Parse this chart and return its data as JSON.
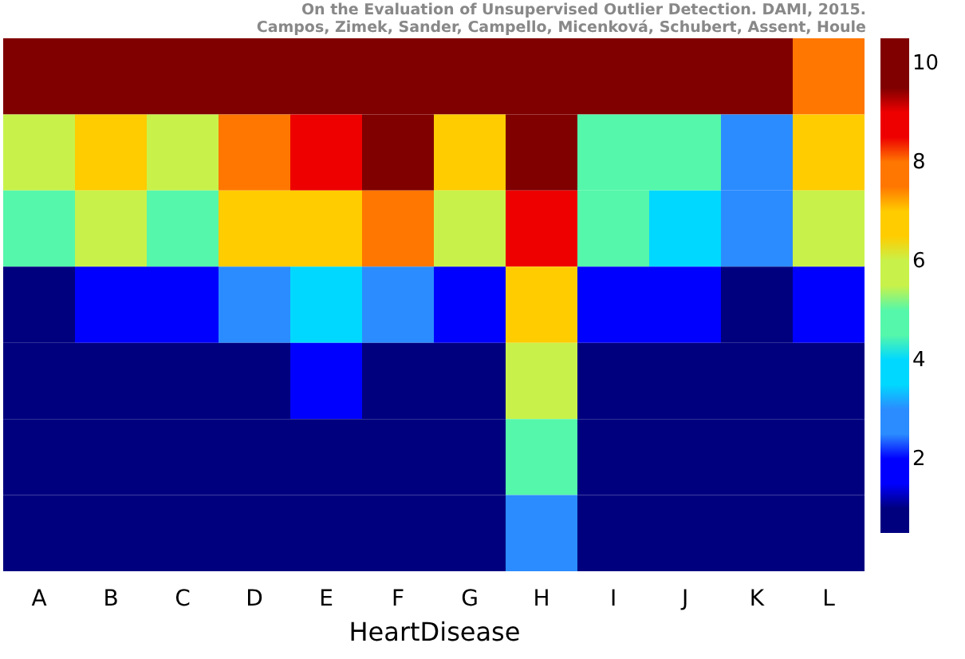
{
  "chart_data": {
    "type": "heatmap",
    "xlabel": "HeartDisease",
    "categories": [
      "A",
      "B",
      "C",
      "D",
      "E",
      "F",
      "G",
      "H",
      "I",
      "J",
      "K",
      "L"
    ],
    "y_categories": [
      null,
      null,
      null,
      null,
      null,
      null,
      null
    ],
    "cells": [
      [
        10,
        10,
        10,
        10,
        10,
        10,
        10,
        10,
        10,
        10,
        10,
        8
      ],
      [
        6,
        7,
        6,
        8,
        9,
        10,
        7,
        10,
        5,
        5,
        3,
        7
      ],
      [
        5,
        6,
        5,
        7,
        7,
        8,
        6,
        9,
        5,
        4,
        3,
        6
      ],
      [
        1,
        2,
        2,
        3,
        4,
        3,
        2,
        7,
        2,
        2,
        1,
        2
      ],
      [
        1,
        1,
        1,
        1,
        2,
        1,
        1,
        6,
        1,
        1,
        1,
        1
      ],
      [
        1,
        1,
        1,
        1,
        1,
        1,
        1,
        5,
        1,
        1,
        1,
        1
      ],
      [
        1,
        1,
        1,
        1,
        1,
        1,
        1,
        3,
        1,
        1,
        1,
        1
      ]
    ],
    "clim": [
      0.5,
      10.5
    ],
    "cticks": [
      2,
      4,
      6,
      8,
      10
    ],
    "annotations": [
      "On the Evaluation of Unsupervised Outlier Detection. DAMI, 2015.",
      "Campos, Zimek, Sander, Campello, Micenková, Schubert, Assent, Houle"
    ]
  }
}
